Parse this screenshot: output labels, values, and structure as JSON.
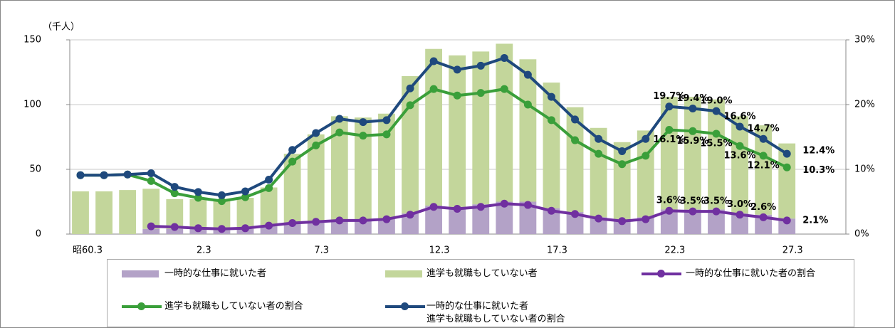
{
  "chart_data": {
    "type": "bar",
    "y_label": "（千人）",
    "categories": [
      "昭60.3",
      null,
      null,
      null,
      null,
      "2.3",
      null,
      null,
      null,
      null,
      "7.3",
      null,
      null,
      null,
      null,
      "12.3",
      null,
      null,
      null,
      null,
      "17.3",
      null,
      null,
      null,
      null,
      "22.3",
      null,
      null,
      null,
      null,
      "27.3"
    ],
    "ylim": [
      0,
      150
    ],
    "yticks": [
      0,
      50,
      100,
      150
    ],
    "y2lim": [
      0,
      30
    ],
    "y2ticks": [
      {
        "value": 0,
        "label": "0%"
      },
      {
        "value": 10,
        "label": "10%"
      },
      {
        "value": 20,
        "label": "20%"
      },
      {
        "value": 30,
        "label": "30%"
      }
    ],
    "grid": true,
    "series": [
      {
        "name": "一時的な仕事に就いた者",
        "type": "bar",
        "color": "#b3a2c7",
        "values": [
          null,
          null,
          null,
          4,
          4,
          4,
          3,
          4,
          6,
          8,
          9,
          11,
          11,
          12,
          16,
          22,
          21,
          23,
          25,
          25,
          20,
          17,
          13,
          11,
          13,
          19,
          19,
          19,
          16,
          15,
          12
        ]
      },
      {
        "name": "進学も就職もしていない者",
        "type": "bar",
        "color": "#c3d69b",
        "values": [
          33,
          33,
          34,
          31,
          23,
          23,
          23,
          24,
          30,
          54,
          68,
          80,
          79,
          81,
          106,
          121,
          117,
          118,
          122,
          110,
          97,
          81,
          69,
          60,
          67,
          87,
          87,
          85,
          75,
          69,
          58
        ]
      },
      {
        "name": "一時的な仕事に就いた者の割合",
        "type": "line",
        "axis": "y2",
        "color": "#7030a0",
        "values": [
          null,
          null,
          null,
          1.2,
          1.1,
          0.9,
          0.8,
          0.9,
          1.3,
          1.7,
          1.9,
          2.1,
          2.1,
          2.3,
          3.0,
          4.2,
          3.9,
          4.2,
          4.7,
          4.5,
          3.6,
          3.1,
          2.4,
          2.0,
          2.3,
          3.6,
          3.5,
          3.5,
          3.0,
          2.6,
          2.1
        ],
        "value_labels": [
          null,
          null,
          null,
          null,
          null,
          null,
          null,
          null,
          null,
          null,
          null,
          null,
          null,
          null,
          null,
          null,
          null,
          null,
          null,
          null,
          null,
          null,
          null,
          null,
          null,
          "3.6%",
          "3.5%",
          "3.5%",
          "3.0%",
          "2.6%",
          "2.1%"
        ]
      },
      {
        "name": "進学も就職もしていない者の割合",
        "type": "line",
        "axis": "y2",
        "color": "#3a9f3a",
        "values": [
          9.1,
          9.1,
          9.2,
          8.2,
          6.3,
          5.6,
          5.1,
          5.7,
          7.1,
          11.2,
          13.7,
          15.7,
          15.2,
          15.4,
          19.9,
          22.4,
          21.4,
          21.8,
          22.4,
          20.0,
          17.6,
          14.5,
          12.4,
          10.8,
          12.1,
          16.1,
          15.9,
          15.5,
          13.6,
          12.1,
          10.3
        ],
        "value_labels": [
          null,
          null,
          null,
          null,
          null,
          null,
          null,
          null,
          null,
          null,
          null,
          null,
          null,
          null,
          null,
          null,
          null,
          null,
          null,
          null,
          null,
          null,
          null,
          null,
          null,
          "16.1%",
          "15.9%",
          "15.5%",
          "13.6%",
          "12.1%",
          "10.3%"
        ]
      },
      {
        "name": "一時的な仕事に就いた者\n進学も就職もしていない者の割合",
        "type": "line",
        "axis": "y2",
        "color": "#1f497d",
        "values": [
          9.1,
          9.1,
          9.2,
          9.4,
          7.3,
          6.5,
          6.0,
          6.6,
          8.4,
          13.0,
          15.6,
          17.8,
          17.3,
          17.6,
          22.5,
          26.7,
          25.4,
          26.0,
          27.2,
          24.6,
          21.2,
          17.7,
          14.7,
          12.8,
          14.7,
          19.7,
          19.4,
          19.0,
          16.6,
          14.7,
          12.4
        ],
        "value_labels": [
          null,
          null,
          null,
          null,
          null,
          null,
          null,
          null,
          null,
          null,
          null,
          null,
          null,
          null,
          null,
          null,
          null,
          null,
          null,
          null,
          null,
          null,
          null,
          null,
          null,
          "19.7%",
          "19.4%",
          "19.0%",
          "16.6%",
          "14.7%",
          "12.4%"
        ]
      }
    ]
  }
}
